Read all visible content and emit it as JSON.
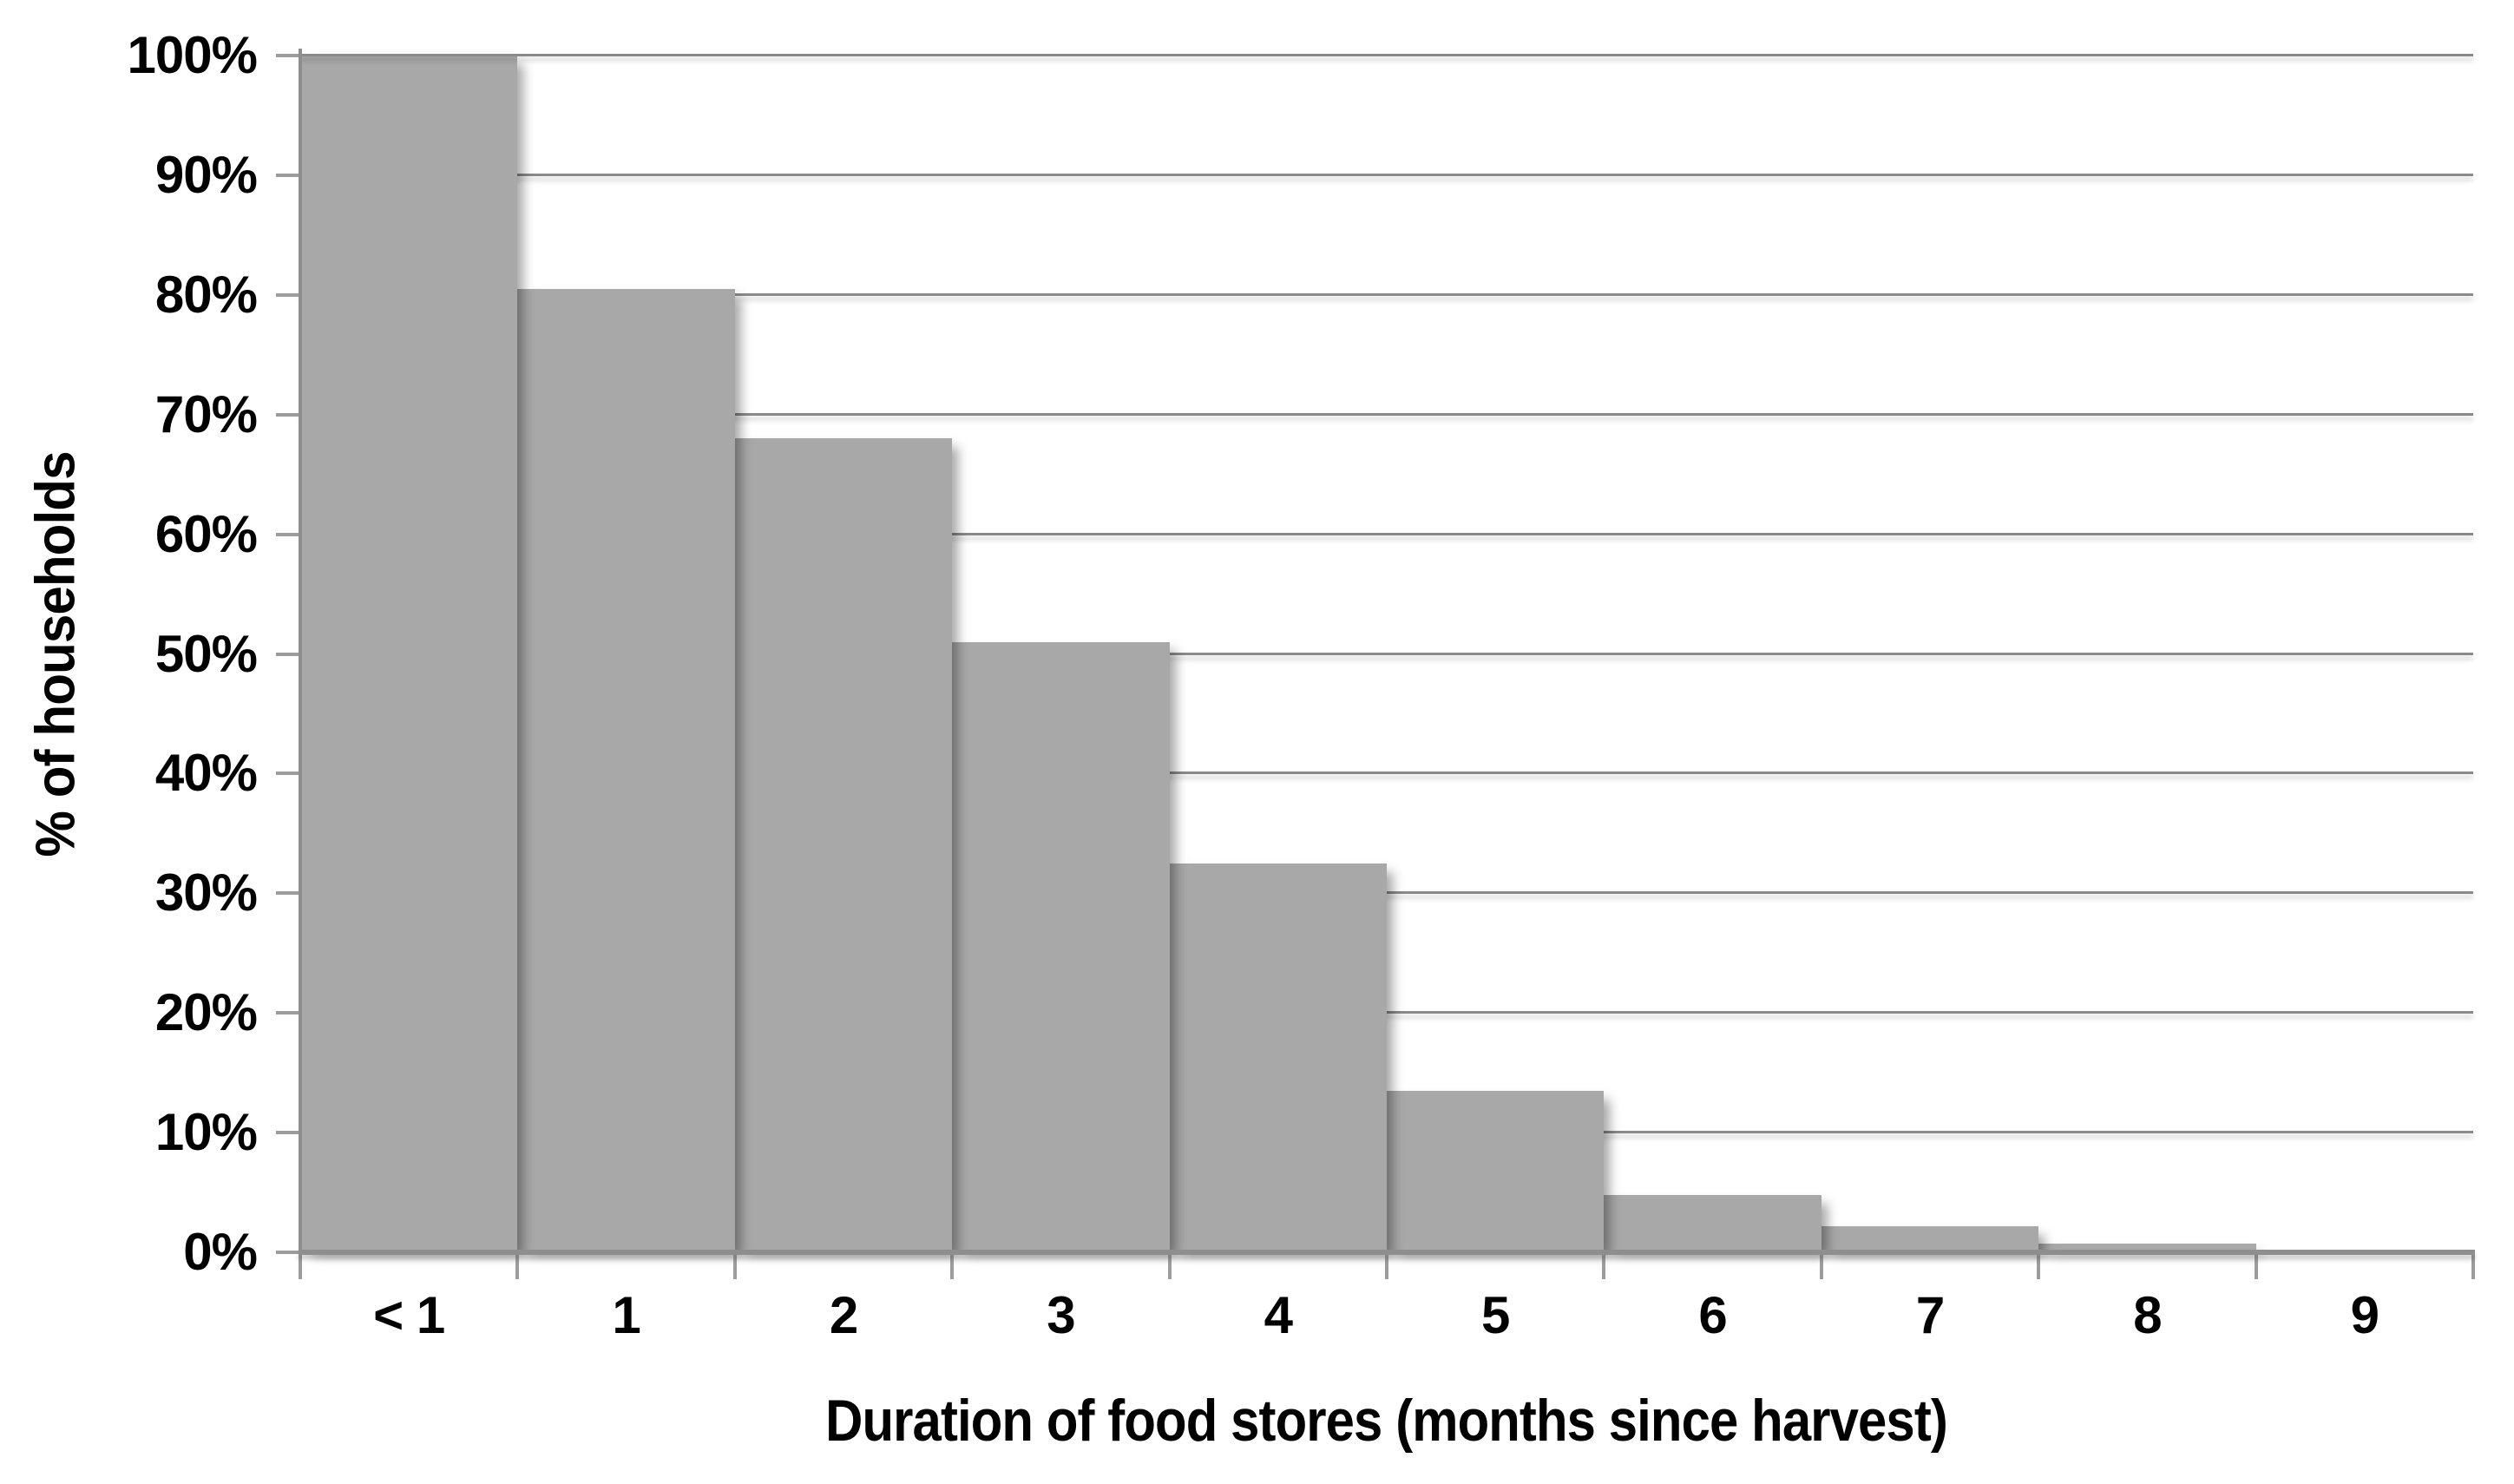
{
  "chart_data": {
    "type": "bar",
    "title": "",
    "categories": [
      "< 1",
      "1",
      "2",
      "3",
      "4",
      "5",
      "6",
      "7",
      "8",
      "9"
    ],
    "values": [
      100,
      80.5,
      68,
      51,
      32.5,
      13.5,
      4.8,
      2.2,
      0.7,
      0.2
    ],
    "xlabel": "Duration of food stores (months since harvest)",
    "ylabel": "% of households",
    "ylim": [
      0,
      100
    ],
    "ytick_step": 10,
    "ytick_labels": [
      "0%",
      "10%",
      "20%",
      "30%",
      "40%",
      "50%",
      "60%",
      "70%",
      "80%",
      "90%",
      "100%"
    ],
    "grid": true,
    "legend": false,
    "bar_gap": 0,
    "colors": {
      "bar": "#A8A8A8",
      "gridline": "#8A8A8A",
      "axis": "#8E8E8E",
      "tick": "#9C9C9C",
      "text": "#000000",
      "background": "#FFFFFF"
    }
  }
}
